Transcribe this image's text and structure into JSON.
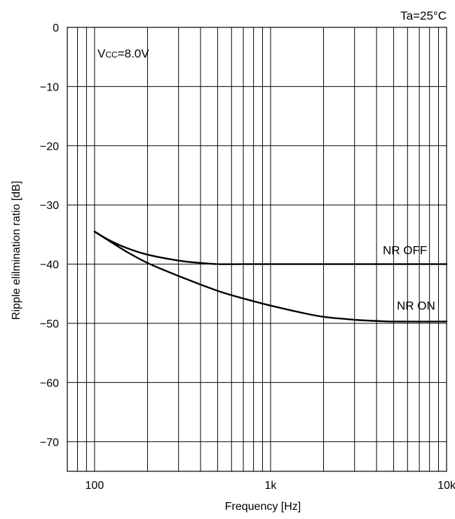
{
  "chart_data": {
    "type": "line",
    "title": "",
    "xlabel": "Frequency [Hz]",
    "ylabel": "Ripple elilmination ratio [dB]",
    "x_scale": "log",
    "xlim": [
      70,
      10000
    ],
    "ylim": [
      -75,
      0
    ],
    "x_ticks": [
      {
        "value": 100,
        "label": "100"
      },
      {
        "value": 1000,
        "label": "1k"
      },
      {
        "value": 10000,
        "label": "10k"
      }
    ],
    "y_ticks": [
      {
        "value": 0,
        "label": "0"
      },
      {
        "value": -10,
        "label": "−10"
      },
      {
        "value": -20,
        "label": "−20"
      },
      {
        "value": -30,
        "label": "−30"
      },
      {
        "value": -40,
        "label": "−40"
      },
      {
        "value": -50,
        "label": "−50"
      },
      {
        "value": -60,
        "label": "−60"
      },
      {
        "value": -70,
        "label": "−70"
      }
    ],
    "grid": true,
    "annotations": {
      "condition_temp": "Ta=25°C",
      "vcc_prefix": "V",
      "vcc_sub": "CC",
      "vcc_value": "=8.0V"
    },
    "series": [
      {
        "name": "NR OFF",
        "label_at": {
          "x": 5800,
          "y": -38.3
        },
        "x": [
          100,
          120,
          150,
          200,
          300,
          400,
          500,
          700,
          1000,
          2000,
          5000,
          10000
        ],
        "y": [
          -34.5,
          -35.9,
          -37.2,
          -38.4,
          -39.4,
          -39.8,
          -40,
          -40,
          -40,
          -40,
          -40,
          -40
        ]
      },
      {
        "name": "NR  ON",
        "label_at": {
          "x": 6700,
          "y": -47.7
        },
        "x": [
          100,
          120,
          150,
          200,
          300,
          500,
          700,
          1000,
          1500,
          2000,
          3000,
          4000,
          5000,
          10000
        ],
        "y": [
          -34.5,
          -36,
          -37.8,
          -39.8,
          -42,
          -44.5,
          -45.8,
          -47,
          -48.2,
          -48.9,
          -49.4,
          -49.6,
          -49.7,
          -49.7
        ]
      }
    ]
  }
}
